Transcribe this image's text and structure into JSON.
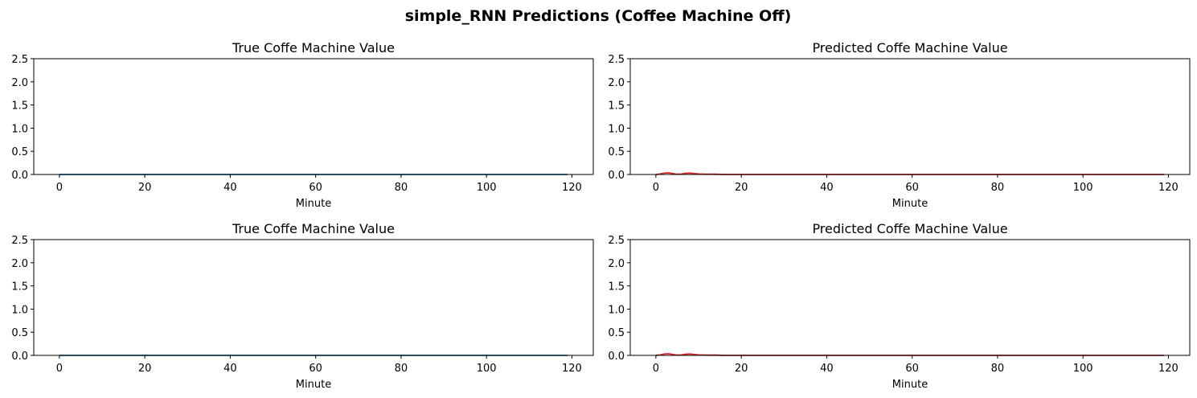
{
  "figure_title": "simple_RNN Predictions (Coffee Machine Off)",
  "chart_data": [
    {
      "type": "line",
      "title": "True Coffe Machine Value",
      "xlabel": "Minute",
      "ylabel": "",
      "xlim": [
        -6,
        125
      ],
      "ylim": [
        0,
        2.5
      ],
      "xticks": [
        0,
        20,
        40,
        60,
        80,
        100,
        120
      ],
      "yticks": [
        0.0,
        0.5,
        1.0,
        1.5,
        2.0,
        2.5
      ],
      "ytick_labels": [
        "0.0",
        "0.5",
        "1.0",
        "1.5",
        "2.0",
        "2.5"
      ],
      "series": [
        {
          "color": "#1f77b4",
          "x": [
            0,
            119
          ],
          "y": [
            0,
            0
          ]
        }
      ]
    },
    {
      "type": "line",
      "title": "Predicted Coffe Machine Value",
      "xlabel": "Minute",
      "ylabel": "",
      "xlim": [
        -6,
        125
      ],
      "ylim": [
        0,
        2.5
      ],
      "xticks": [
        0,
        20,
        40,
        60,
        80,
        100,
        120
      ],
      "yticks": [
        0.0,
        0.5,
        1.0,
        1.5,
        2.0,
        2.5
      ],
      "ytick_labels": [
        "0.0",
        "0.5",
        "1.0",
        "1.5",
        "2.0",
        "2.5"
      ],
      "series": [
        {
          "color": "#d62728",
          "x": [
            0,
            1,
            2,
            3,
            4,
            5,
            6,
            7,
            8,
            9,
            10,
            12,
            14,
            16,
            20,
            119
          ],
          "y": [
            0.0,
            0.01,
            0.03,
            0.035,
            0.02,
            0.005,
            0.01,
            0.025,
            0.03,
            0.02,
            0.01,
            0.005,
            0.005,
            0.0,
            0.0,
            0.0
          ]
        }
      ]
    },
    {
      "type": "line",
      "title": "True Coffe Machine Value",
      "xlabel": "Minute",
      "ylabel": "",
      "xlim": [
        -6,
        125
      ],
      "ylim": [
        0,
        2.5
      ],
      "xticks": [
        0,
        20,
        40,
        60,
        80,
        100,
        120
      ],
      "yticks": [
        0.0,
        0.5,
        1.0,
        1.5,
        2.0,
        2.5
      ],
      "ytick_labels": [
        "0.0",
        "0.5",
        "1.0",
        "1.5",
        "2.0",
        "2.5"
      ],
      "series": [
        {
          "color": "#1f77b4",
          "x": [
            0,
            119
          ],
          "y": [
            0,
            0
          ]
        }
      ]
    },
    {
      "type": "line",
      "title": "Predicted Coffe Machine Value",
      "xlabel": "Minute",
      "ylabel": "",
      "xlim": [
        -6,
        125
      ],
      "ylim": [
        0,
        2.5
      ],
      "xticks": [
        0,
        20,
        40,
        60,
        80,
        100,
        120
      ],
      "yticks": [
        0.0,
        0.5,
        1.0,
        1.5,
        2.0,
        2.5
      ],
      "ytick_labels": [
        "0.0",
        "0.5",
        "1.0",
        "1.5",
        "2.0",
        "2.5"
      ],
      "series": [
        {
          "color": "#d62728",
          "x": [
            0,
            1,
            2,
            3,
            4,
            5,
            6,
            7,
            8,
            9,
            10,
            12,
            14,
            16,
            20,
            119
          ],
          "y": [
            0.0,
            0.01,
            0.03,
            0.035,
            0.02,
            0.005,
            0.01,
            0.025,
            0.03,
            0.02,
            0.01,
            0.005,
            0.005,
            0.0,
            0.0,
            0.0
          ]
        }
      ]
    }
  ]
}
